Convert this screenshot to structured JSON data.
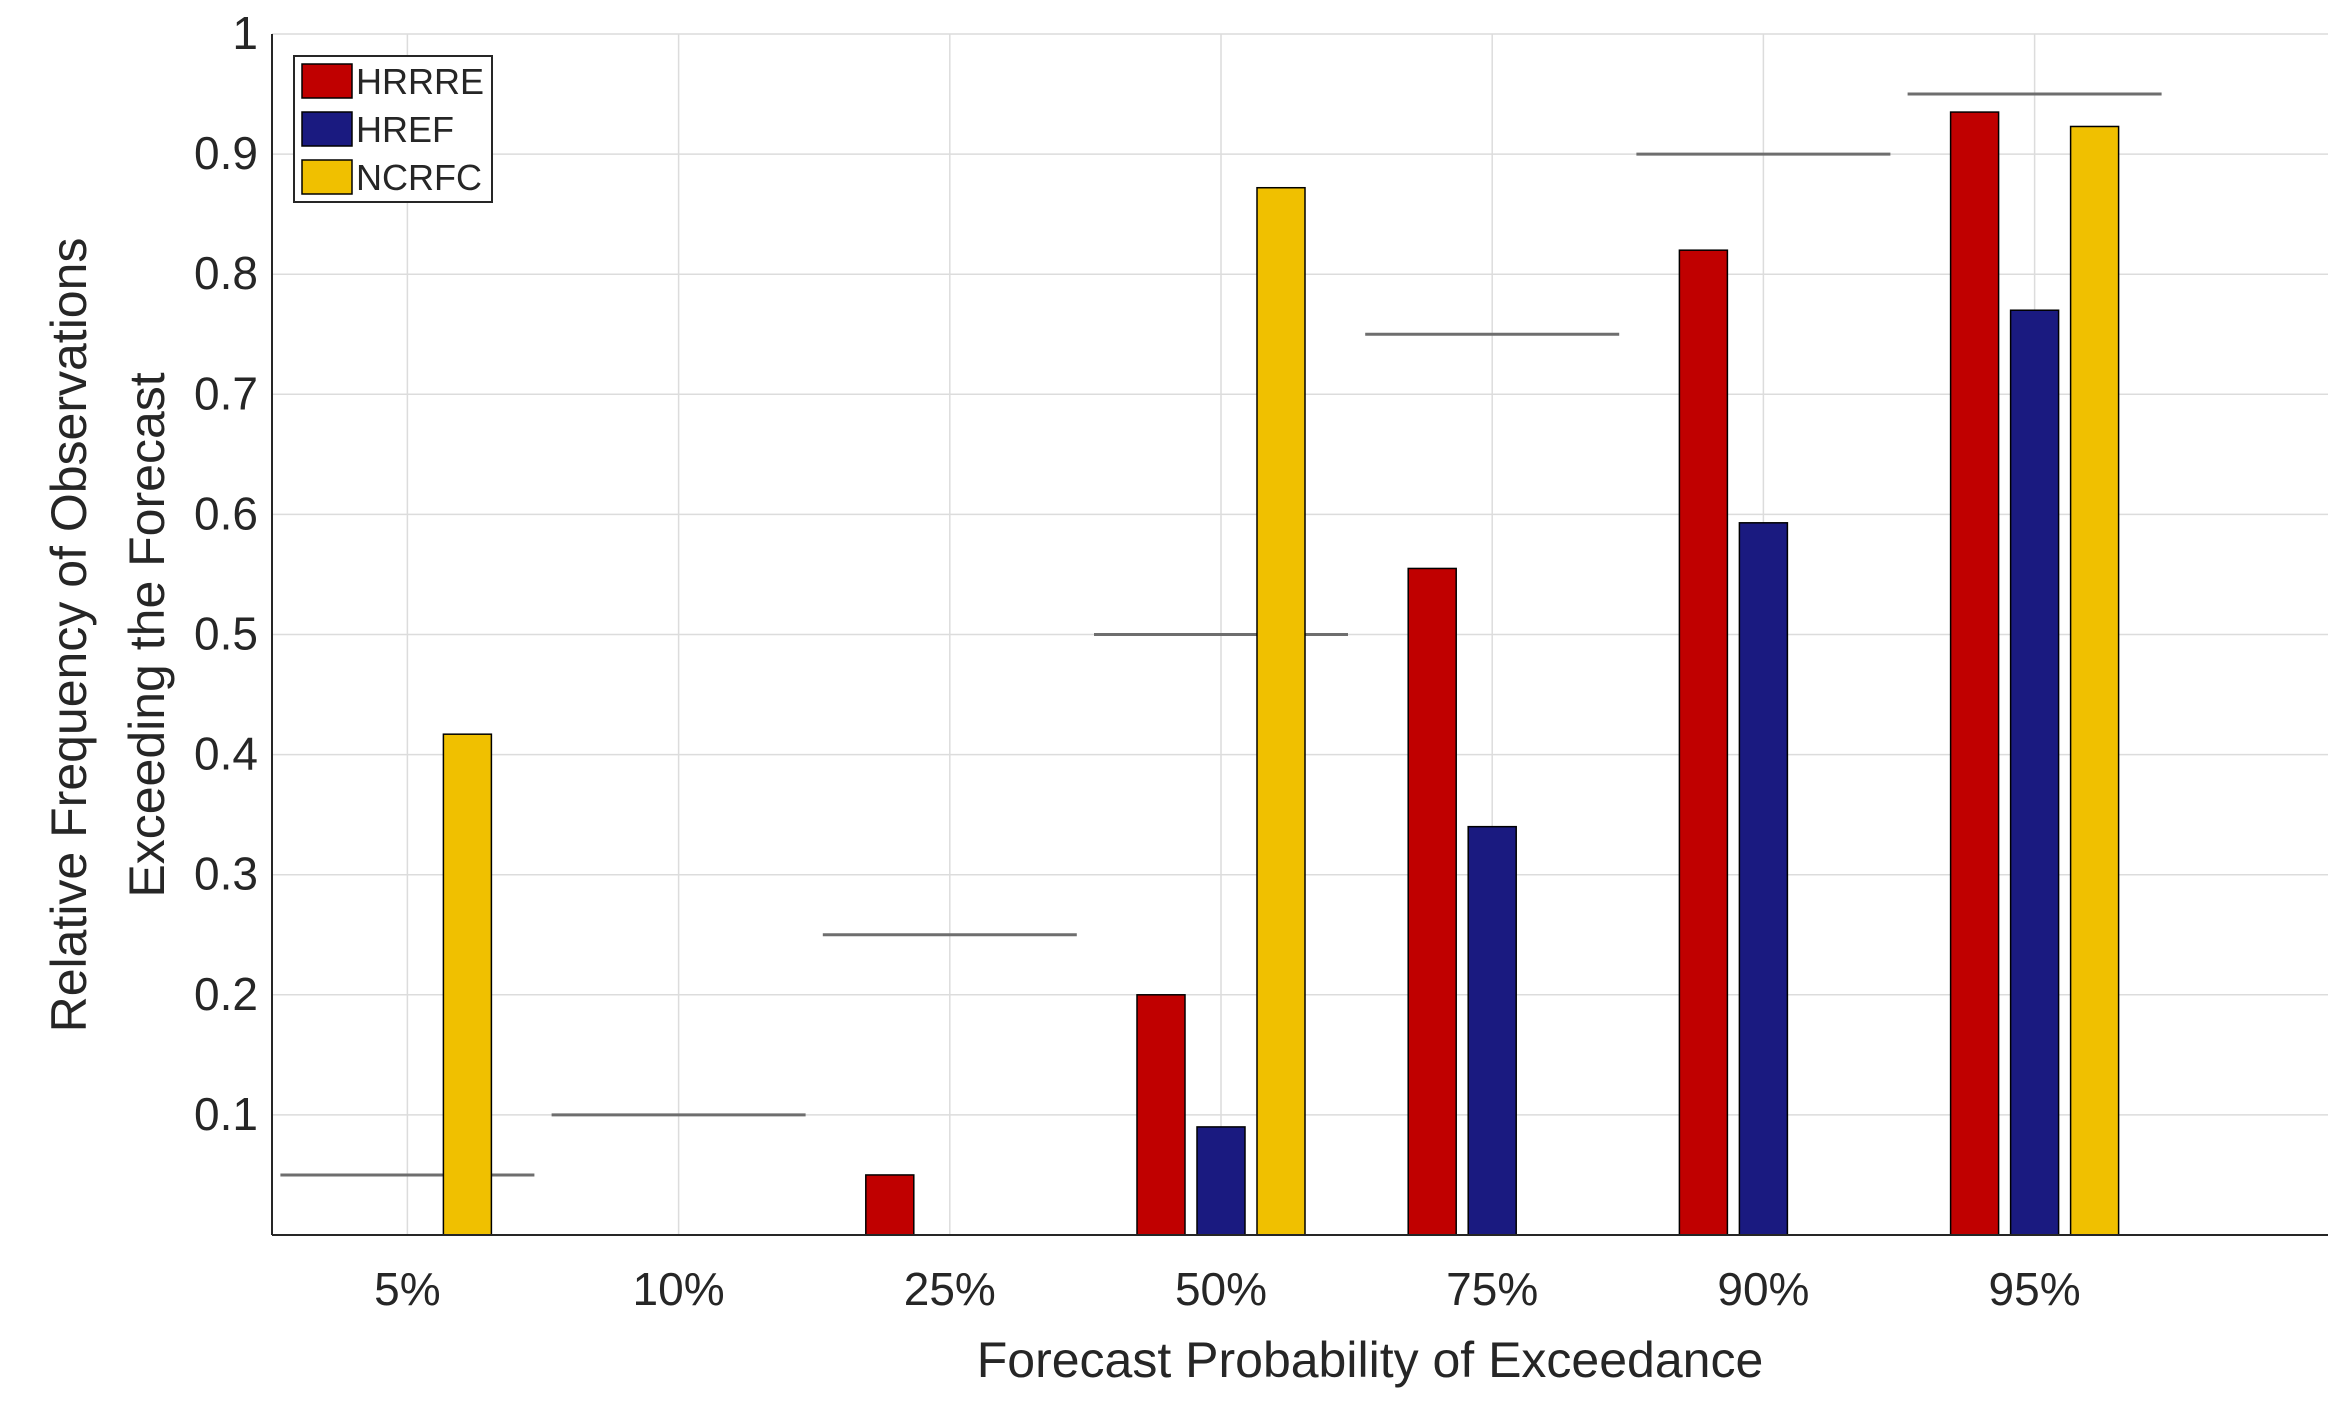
{
  "chart_data": {
    "type": "bar",
    "title": "",
    "xlabel": "Forecast Probability of Exceedance",
    "ylabel_lines": [
      "Relative Frequency of Observations",
      "Exceeding the Forecast"
    ],
    "categories": [
      "5%",
      "10%",
      "25%",
      "50%",
      "75%",
      "90%",
      "95%"
    ],
    "reference_values": [
      0.05,
      0.1,
      0.25,
      0.5,
      0.75,
      0.9,
      0.95
    ],
    "series": [
      {
        "name": "HRRRE",
        "color": "#c00000",
        "values": [
          0,
          0,
          0.05,
          0.2,
          0.555,
          0.82,
          0.935
        ]
      },
      {
        "name": "HREF",
        "color": "#1a1a80",
        "values": [
          0,
          0,
          0,
          0.09,
          0.34,
          0.593,
          0.77
        ]
      },
      {
        "name": "NCRFC",
        "color": "#f0c000",
        "values": [
          0.417,
          0,
          0,
          0.872,
          0,
          0,
          0.923
        ]
      }
    ],
    "ylim": [
      0,
      1
    ],
    "yticks": [
      0.1,
      0.2,
      0.3,
      0.4,
      0.5,
      0.6,
      0.7,
      0.8,
      0.9,
      1
    ],
    "ytick_labels": [
      "0.1",
      "0.2",
      "0.3",
      "0.4",
      "0.5",
      "0.6",
      "0.7",
      "0.8",
      "0.9",
      "1"
    ],
    "grid": true,
    "legend_position": "top-left"
  }
}
